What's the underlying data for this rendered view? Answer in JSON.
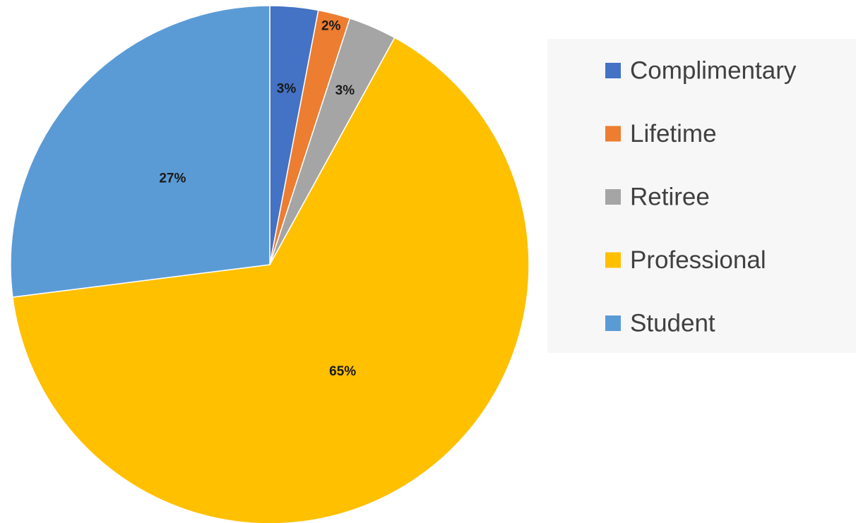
{
  "chart_data": {
    "type": "pie",
    "categories": [
      "Complimentary",
      "Lifetime",
      "Retiree",
      "Professional",
      "Student"
    ],
    "values": [
      3,
      2,
      3,
      65,
      27
    ],
    "value_labels": [
      "3%",
      "2%",
      "3%",
      "65%",
      "27%"
    ],
    "colors": [
      "#4472c4",
      "#ed7d31",
      "#a5a5a5",
      "#ffc000",
      "#5b9bd5"
    ],
    "legend": "right"
  }
}
